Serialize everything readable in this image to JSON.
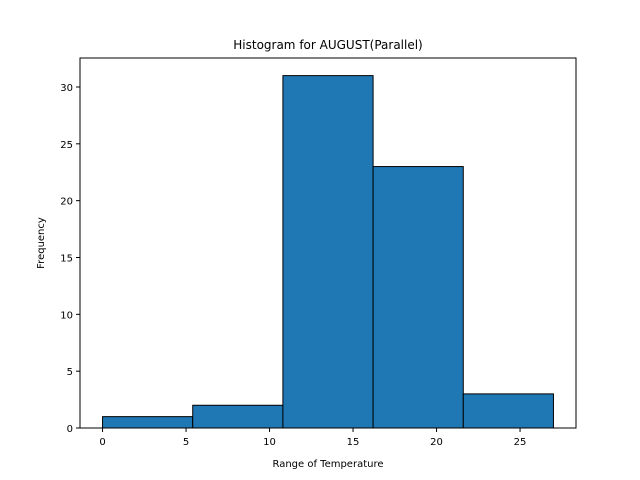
{
  "chart_data": {
    "type": "bar",
    "title": "Histogram for AUGUST(Parallel)",
    "xlabel": "Range of Temperature",
    "ylabel": "Frequency",
    "bins": [
      {
        "start": 0.0,
        "end": 5.4,
        "count": 1
      },
      {
        "start": 5.4,
        "end": 10.8,
        "count": 2
      },
      {
        "start": 10.8,
        "end": 16.2,
        "count": 31
      },
      {
        "start": 16.2,
        "end": 21.6,
        "count": 23
      },
      {
        "start": 21.6,
        "end": 27.0,
        "count": 3
      }
    ],
    "xlim": [
      -1.35,
      28.35
    ],
    "ylim": [
      0,
      32.55
    ],
    "xticks": [
      0,
      5,
      10,
      15,
      20,
      25
    ],
    "yticks": [
      0,
      5,
      10,
      15,
      20,
      25,
      30
    ],
    "bar_color": "#1f77b4",
    "edge_color": "#000000",
    "grid": false
  }
}
